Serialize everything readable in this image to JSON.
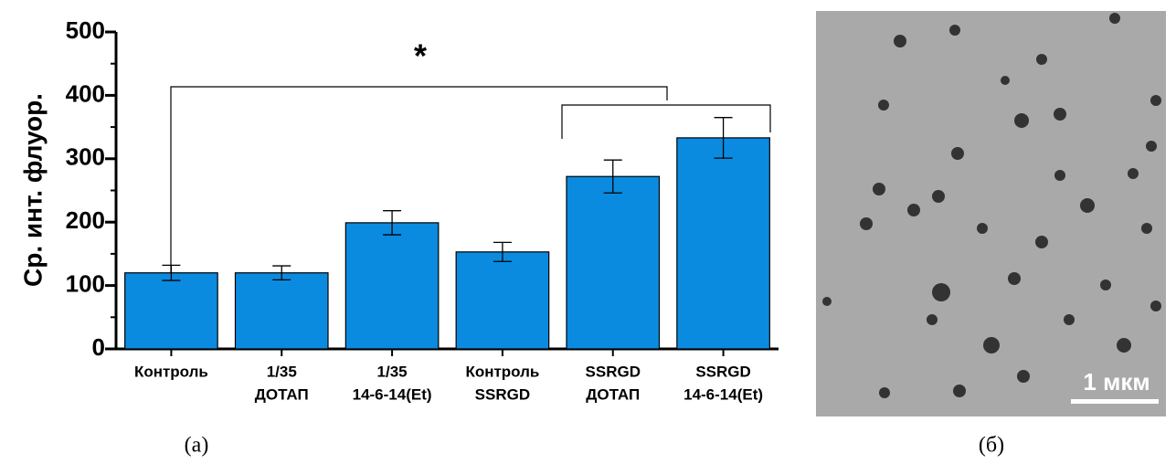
{
  "chart_data": {
    "type": "bar",
    "y_label": "Ср. инт. флуор.",
    "categories": [
      [
        "Контроль"
      ],
      [
        "1/35",
        "ДОТАП"
      ],
      [
        "1/35",
        "14-6-14(Et)"
      ],
      [
        "Контроль",
        "SSRGD"
      ],
      [
        "SSRGD",
        "ДОТАП"
      ],
      [
        "SSRGD",
        "14-6-14(Et)"
      ]
    ],
    "values": [
      120,
      120,
      199,
      153,
      272,
      333
    ],
    "errors": [
      12,
      11,
      19,
      15,
      26,
      32
    ],
    "color": "#0a8be0",
    "ylim": [
      0,
      500
    ],
    "yticks": [
      0,
      100,
      200,
      300,
      400,
      500
    ],
    "minor_yticks": [
      50,
      150,
      250,
      350,
      450
    ],
    "annotation": "*",
    "caption": "(а)"
  },
  "image": {
    "scale_bar": "1 мкм",
    "caption": "(б)"
  }
}
